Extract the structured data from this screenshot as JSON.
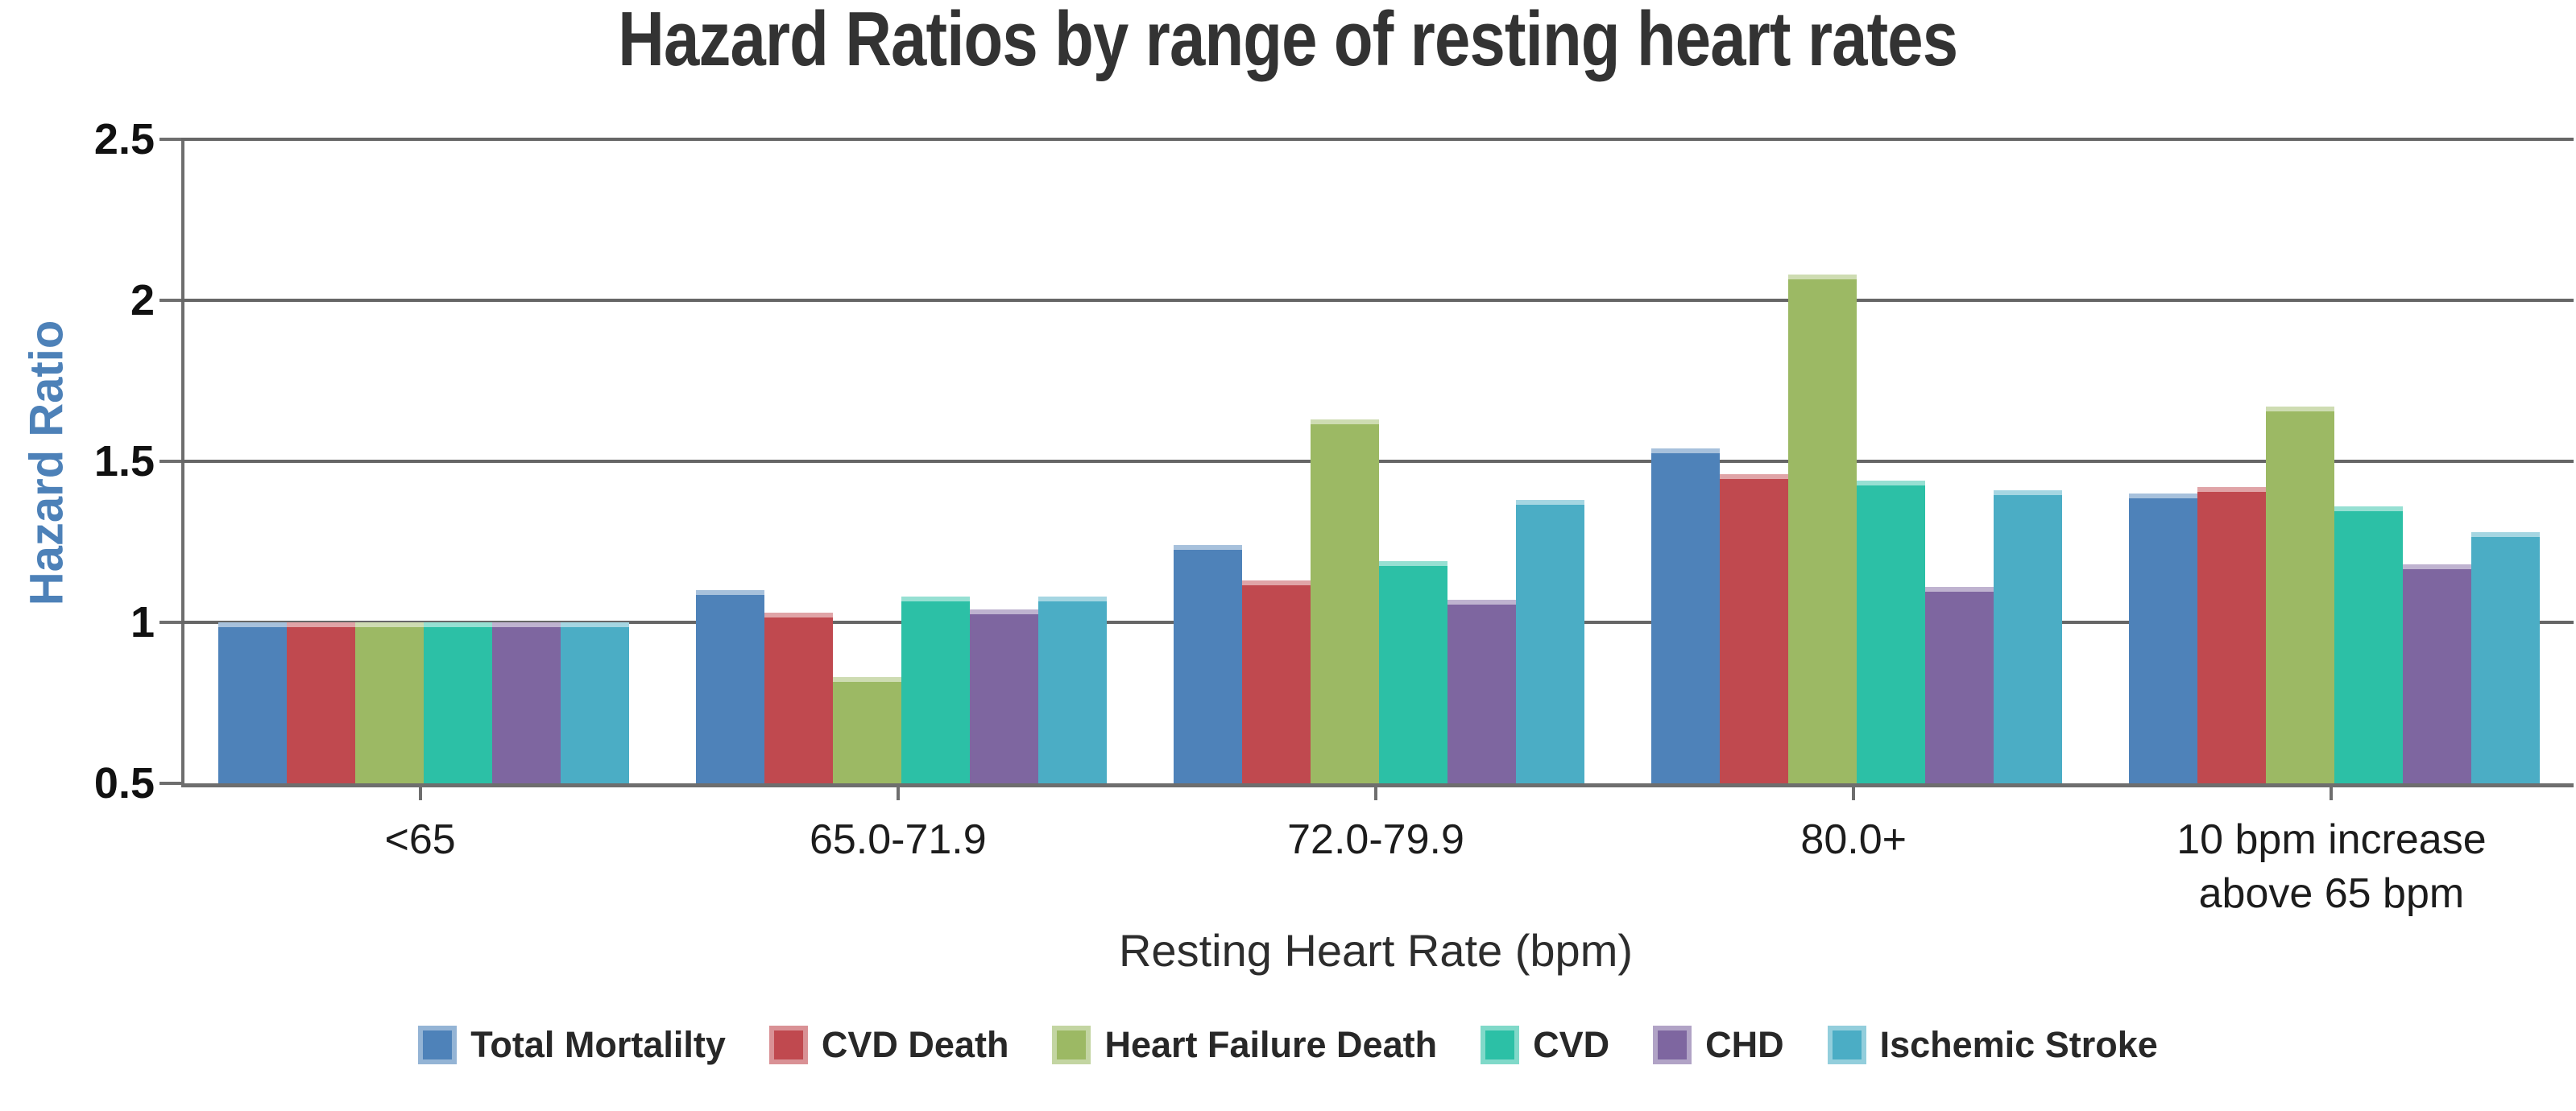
{
  "page": {
    "background_color": "#ffffff"
  },
  "chart_data": {
    "type": "bar",
    "title": "Hazard Ratios by range of resting heart rates",
    "xlabel": "Resting Heart Rate (bpm)",
    "ylabel": "Hazard Ratio",
    "ylim": [
      0.5,
      2.5
    ],
    "yticks": [
      0.5,
      1,
      1.5,
      2,
      2.5
    ],
    "bar_baseline": 0.5,
    "grid": true,
    "legend_position": "bottom",
    "categories": [
      "<65",
      "65.0-71.9",
      "72.0-79.9",
      "80.0+",
      "10 bpm increase\nabove 65 bpm"
    ],
    "series": [
      {
        "name": "Total Mortalilty",
        "color": "#4e82b9",
        "values": [
          1.0,
          1.1,
          1.24,
          1.54,
          1.4
        ]
      },
      {
        "name": "CVD Death",
        "color": "#c0494f",
        "values": [
          1.0,
          1.03,
          1.13,
          1.46,
          1.42
        ]
      },
      {
        "name": "Heart Failure Death",
        "color": "#9cb964",
        "values": [
          1.0,
          0.83,
          1.63,
          2.08,
          1.67
        ]
      },
      {
        "name": "CVD",
        "color": "#2cc0a6",
        "values": [
          1.0,
          1.08,
          1.19,
          1.44,
          1.36
        ]
      },
      {
        "name": "CHD",
        "color": "#7e66a0",
        "values": [
          1.0,
          1.04,
          1.07,
          1.11,
          1.18
        ]
      },
      {
        "name": "Ischemic Stroke",
        "color": "#4badc5",
        "values": [
          1.0,
          1.08,
          1.38,
          1.41,
          1.28
        ]
      }
    ],
    "accent_colors": {
      "title_text": "#333333",
      "ylabel_text": "#4d81b8",
      "axis_and_grid": "#6e6e6e"
    }
  }
}
